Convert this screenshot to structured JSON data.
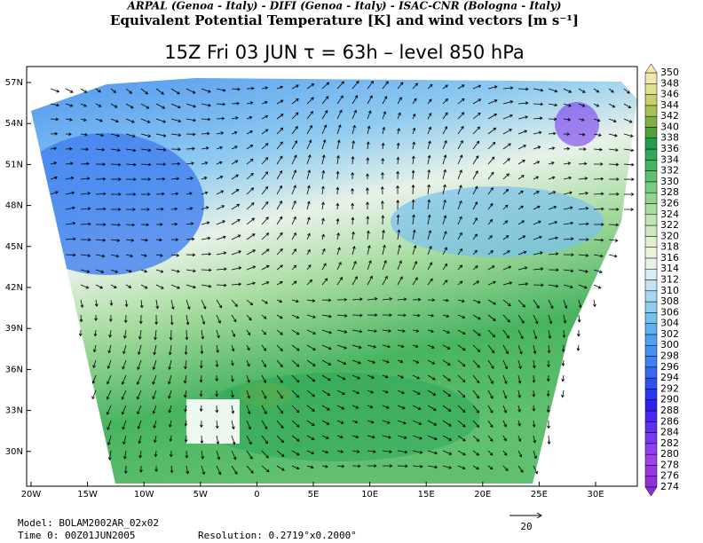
{
  "header": {
    "agencies": "ARPAL (Genoa - Italy)  -  DIFI (Genoa - Italy)  -  ISAC-CNR (Bologna - Italy)",
    "title": "Equivalent Potential Temperature [K] and wind vectors [m s⁻¹]",
    "subtitle": "15Z Fri 03 JUN  τ = 63h  –  level 850 hPa"
  },
  "map": {
    "lat_labels": [
      "57N",
      "54N",
      "51N",
      "48N",
      "45N",
      "42N",
      "39N",
      "36N",
      "33N",
      "30N"
    ],
    "lon_labels": [
      "20W",
      "15W",
      "10W",
      "5W",
      "0",
      "5E",
      "10E",
      "15E",
      "20E",
      "25E",
      "30E"
    ]
  },
  "colorbar": {
    "labels": [
      "350",
      "348",
      "346",
      "344",
      "342",
      "340",
      "338",
      "336",
      "334",
      "332",
      "330",
      "328",
      "326",
      "324",
      "322",
      "320",
      "318",
      "316",
      "314",
      "312",
      "310",
      "308",
      "306",
      "304",
      "302",
      "300",
      "298",
      "296",
      "294",
      "292",
      "290",
      "288",
      "286",
      "284",
      "282",
      "280",
      "278",
      "276",
      "274"
    ],
    "colors": [
      "#9030d8",
      "#9838e0",
      "#a040e8",
      "#9040f0",
      "#7838f0",
      "#6030f0",
      "#4828f0",
      "#3020e8",
      "#2838f0",
      "#3050f0",
      "#3868f0",
      "#4080f0",
      "#4890f0",
      "#50a0f0",
      "#60b0f0",
      "#78c0f0",
      "#90ccf0",
      "#a8d8f0",
      "#c0e4f0",
      "#d8eef0",
      "#e8f2e8",
      "#eef4dc",
      "#e0f0d0",
      "#d0eac0",
      "#c0e4b0",
      "#a8dca0",
      "#90d490",
      "#78cc80",
      "#60c070",
      "#48b460",
      "#30a858",
      "#209c50",
      "#50a040",
      "#80b048",
      "#a8c058",
      "#c8d070",
      "#e0e090",
      "#f0e8b0"
    ]
  },
  "footer": {
    "model": "Model: BOLAM2002AR_02x02",
    "time": "Time 0: 00Z01JUN2005",
    "resolution": "Resolution: 0.2719°x0.2000°",
    "vector_ref": "20"
  }
}
